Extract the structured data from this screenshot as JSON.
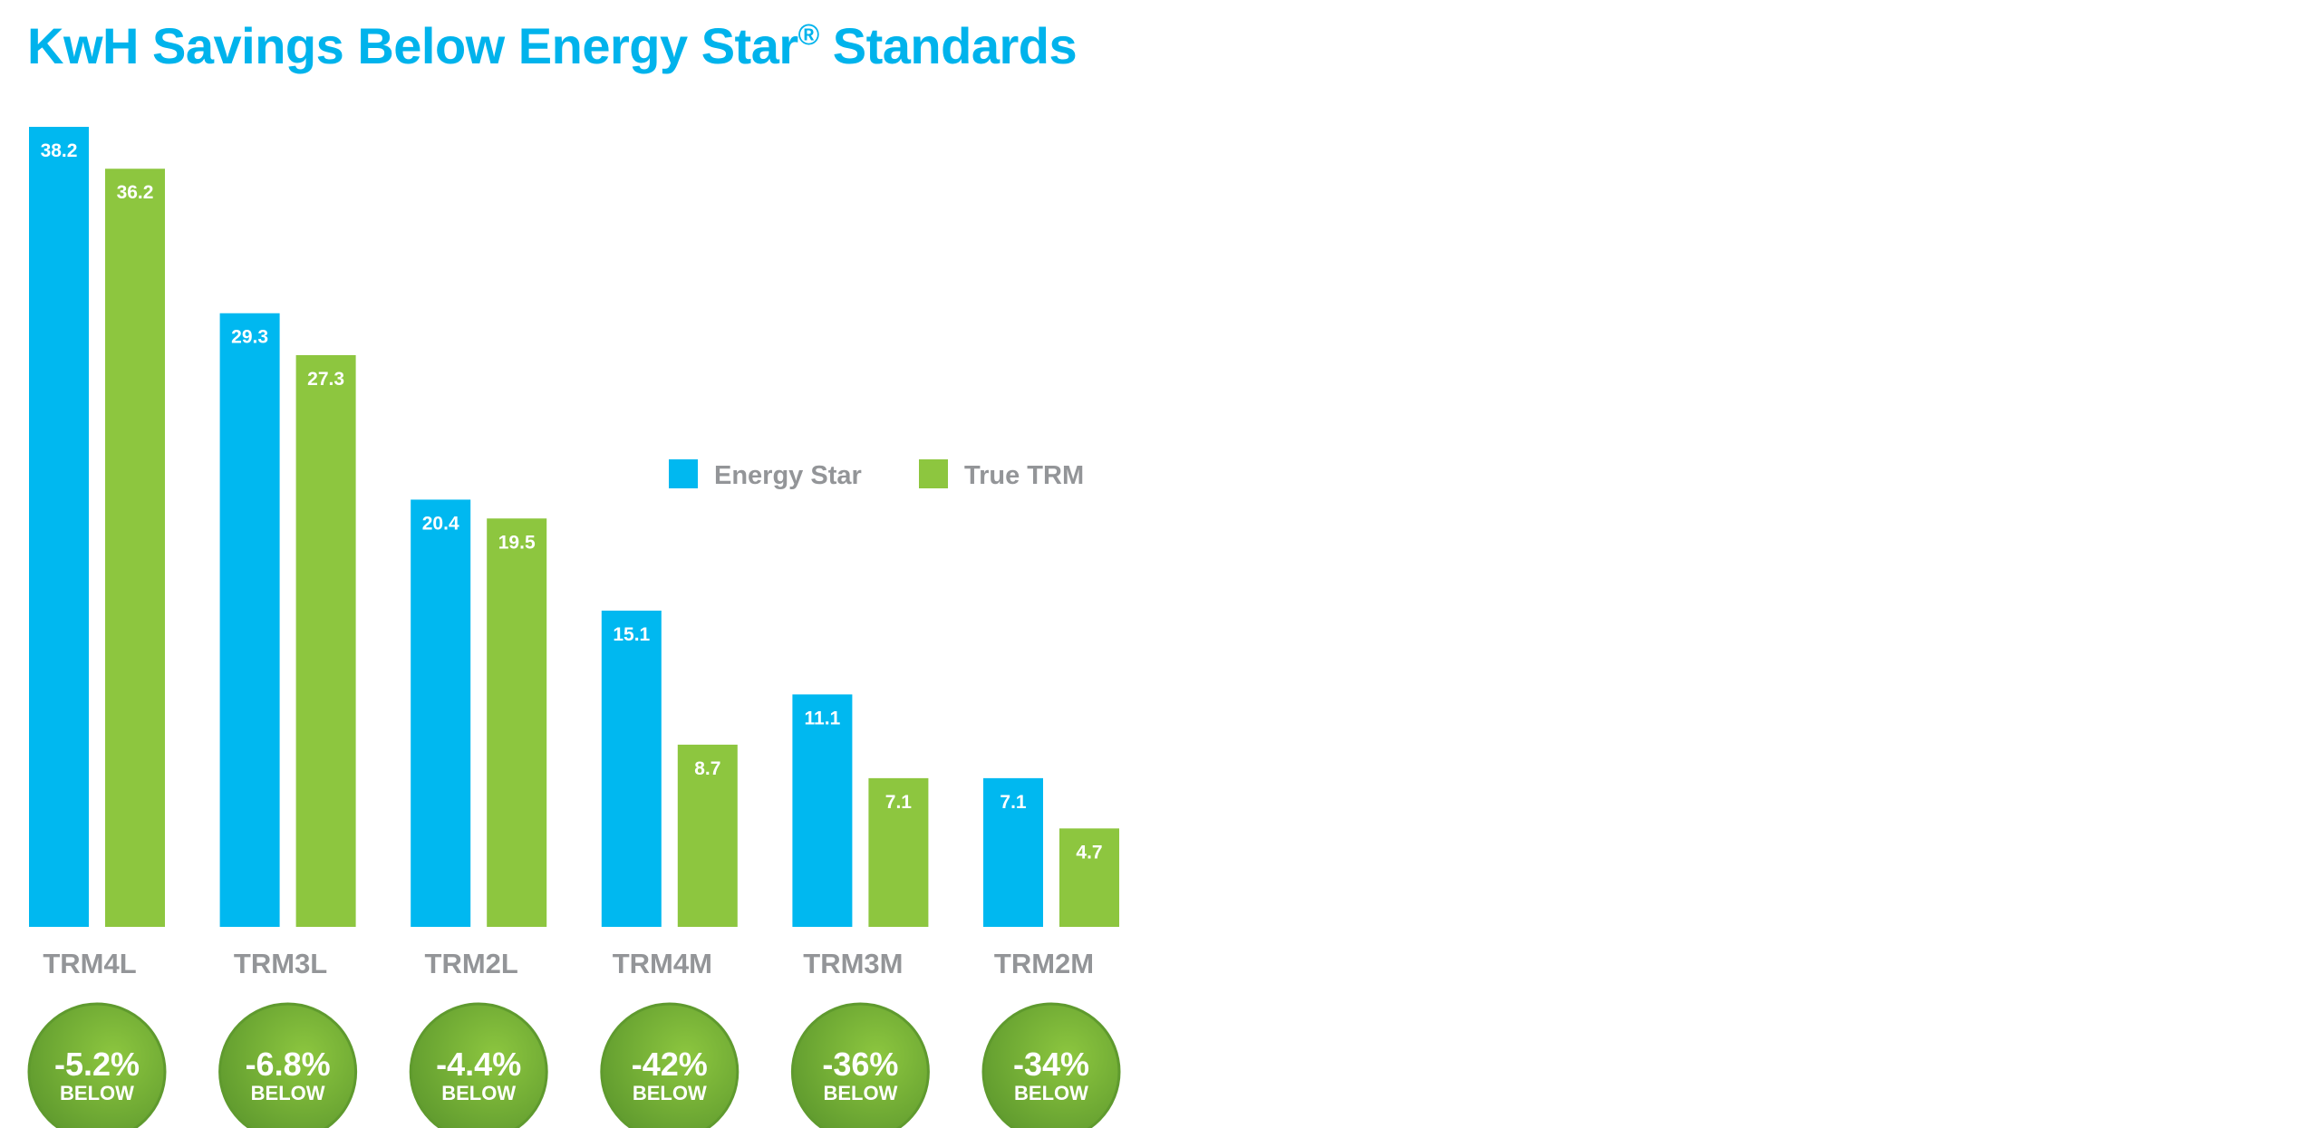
{
  "colors": {
    "energy_star": "#00b8f0",
    "true_trm": "#8dc63f",
    "title": "#00b3ec",
    "label_gray": "#939598",
    "badge_light": "#8cc63f",
    "badge_dark": "#5f9a2e"
  },
  "chart_data": {
    "type": "bar",
    "title": "KwH Savings Below Energy Star",
    "title_mark": "®",
    "title_suffix": " Standards",
    "categories": [
      "TRM4L",
      "TRM3L",
      "TRM2L",
      "TRM4M",
      "TRM3M",
      "TRM2M"
    ],
    "series": [
      {
        "name": "Energy Star",
        "color": "#00b8f0",
        "values": [
          38.2,
          29.3,
          20.4,
          15.1,
          11.1,
          7.1
        ]
      },
      {
        "name": "True TRM",
        "color": "#8dc63f",
        "values": [
          36.2,
          27.3,
          19.5,
          8.7,
          7.1,
          4.7
        ]
      }
    ],
    "value_labels": [
      [
        "38.2",
        "29.3",
        "20.4",
        "15.1",
        "11.1",
        "7.1"
      ],
      [
        "36.2",
        "27.3",
        "19.5",
        "8.7",
        "7.1",
        "4.7"
      ]
    ],
    "badges": [
      {
        "percent": "-5.2%",
        "word": "BELOW"
      },
      {
        "percent": "-6.8%",
        "word": "BELOW"
      },
      {
        "percent": "-4.4%",
        "word": "BELOW"
      },
      {
        "percent": "-42%",
        "word": "BELOW"
      },
      {
        "percent": "-36%",
        "word": "BELOW"
      },
      {
        "percent": "-34%",
        "word": "BELOW"
      }
    ],
    "ylim": [
      0,
      38.2
    ],
    "xlabel": "",
    "ylabel": "",
    "grid": false,
    "legend": "right"
  }
}
